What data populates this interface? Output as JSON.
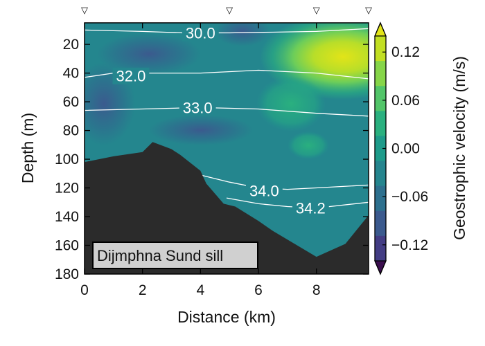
{
  "chart_data": {
    "type": "heatmap",
    "xlabel": "Distance (km)",
    "ylabel": "Depth (m)",
    "xlim": [
      0,
      9.8
    ],
    "ylim": [
      180,
      5
    ],
    "x_ticks": [
      0,
      2,
      4,
      6,
      8
    ],
    "y_ticks": [
      20,
      40,
      60,
      80,
      100,
      120,
      140,
      160,
      180
    ],
    "station_markers_km": [
      0,
      5,
      8,
      9.8
    ],
    "station_marker_symbol": "▽",
    "colorbar": {
      "label": "Geostrophic velocity (m/s)",
      "ticks": [
        0.12,
        0.06,
        0.0,
        -0.06,
        -0.12
      ],
      "tick_labels": [
        "0.12",
        "0.06",
        "0.00",
        "−0.06",
        "−0.12"
      ],
      "range": [
        -0.14,
        0.14
      ],
      "colors": [
        "#3b0f4f",
        "#433d84",
        "#3b5a8e",
        "#2d708e",
        "#25858e",
        "#1e9b8a",
        "#2ab07f",
        "#52c569",
        "#86d549",
        "#c2df23",
        "#e2e418"
      ]
    },
    "contours": [
      {
        "value": "30.0",
        "label_at": [
          4.0,
          12
        ],
        "points": [
          [
            0,
            10
          ],
          [
            2,
            11
          ],
          [
            3.4,
            12
          ],
          [
            5,
            12
          ],
          [
            6.5,
            11.5
          ],
          [
            8,
            11
          ],
          [
            9.8,
            9
          ]
        ]
      },
      {
        "value": "32.0",
        "label_at": [
          1.6,
          42
        ],
        "points": [
          [
            0,
            43
          ],
          [
            1,
            40
          ],
          [
            2.5,
            40
          ],
          [
            4,
            40
          ],
          [
            6,
            38
          ],
          [
            8,
            40
          ],
          [
            9.8,
            44
          ]
        ]
      },
      {
        "value": "33.0",
        "label_at": [
          3.9,
          64
        ],
        "points": [
          [
            0,
            66
          ],
          [
            2,
            65
          ],
          [
            4,
            64
          ],
          [
            6,
            65
          ],
          [
            8,
            68
          ],
          [
            9.8,
            70
          ]
        ]
      },
      {
        "value": "34.0",
        "label_at": [
          6.2,
          122
        ],
        "points": [
          [
            4,
            111
          ],
          [
            5,
            116
          ],
          [
            6,
            120
          ],
          [
            7,
            121
          ],
          [
            8,
            120
          ],
          [
            9.8,
            118
          ]
        ]
      },
      {
        "value": "34.2",
        "label_at": [
          7.8,
          134
        ],
        "points": [
          [
            4.9,
            127
          ],
          [
            6,
            131
          ],
          [
            7,
            133
          ],
          [
            8,
            134
          ],
          [
            9.8,
            130
          ]
        ]
      }
    ],
    "seafloor": [
      [
        0,
        102
      ],
      [
        1,
        98
      ],
      [
        2,
        95
      ],
      [
        2.35,
        88
      ],
      [
        3,
        93
      ],
      [
        3.3,
        97
      ],
      [
        4,
        108
      ],
      [
        4.2,
        117
      ],
      [
        4.8,
        131
      ],
      [
        5.2,
        133
      ],
      [
        6,
        143
      ],
      [
        6.5,
        150
      ],
      [
        7,
        156
      ],
      [
        8,
        168
      ],
      [
        9,
        159
      ],
      [
        9.8,
        139
      ]
    ],
    "annotation": "Dijmphna Sund sill"
  }
}
